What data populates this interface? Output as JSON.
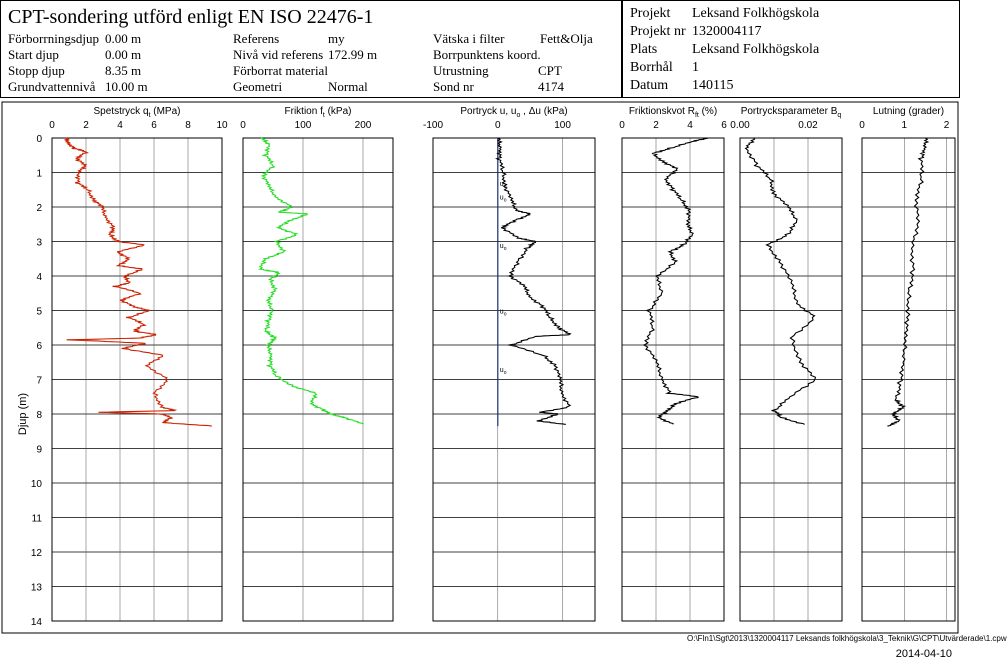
{
  "header": {
    "title": "CPT-sondering utförd enligt EN ISO 22476-1",
    "c1": [
      [
        "Förborrningsdjup",
        "0.00 m"
      ],
      [
        "Start djup",
        "0.00 m"
      ],
      [
        "Stopp djup",
        "8.35 m"
      ],
      [
        "Grundvattennivå",
        "10.00 m"
      ]
    ],
    "c2": [
      [
        "Referens",
        "my"
      ],
      [
        "Nivå vid referens",
        "172.99 m"
      ],
      [
        "Förborrat material",
        ""
      ],
      [
        "Geometri",
        "Normal"
      ]
    ],
    "c3": [
      [
        "Vätska i filter",
        "Fett&Olja"
      ],
      [
        "Borrpunktens koord.",
        ""
      ],
      [
        "Utrustning",
        "CPT"
      ],
      [
        "Sond nr",
        "4174"
      ]
    ],
    "c4": [
      [
        "Projekt",
        "Leksand Folkhögskola"
      ],
      [
        "Projekt nr",
        "1320004117"
      ],
      [
        "Plats",
        "Leksand Folkhögskola"
      ],
      [
        "Borrhål",
        "1"
      ],
      [
        "Datum",
        "140115"
      ]
    ]
  },
  "footer": {
    "path": "O:\\Fln1\\Sgt\\2013\\1320004117 Leksands folkhögskola\\3_Teknik\\G\\CPT\\Utvärderade\\1.cpw",
    "date": "2014-04-10"
  },
  "chart_data": {
    "type": "line",
    "ylabel": "Djup (m)",
    "y_ticks": [
      0,
      1,
      2,
      3,
      4,
      5,
      6,
      7,
      8,
      9,
      10,
      11,
      12,
      13,
      14
    ],
    "ylim": [
      0,
      14
    ],
    "panels": [
      {
        "name": "Spetstryck qt (MPa)",
        "title_main": "Spetstryck q",
        "title_sub": "t",
        "title_end": "(MPa)",
        "ticks": [
          "0",
          "2",
          "4",
          "6",
          "8",
          "10"
        ],
        "xlim": [
          0,
          10
        ],
        "color": "#cc2200",
        "points": [
          [
            0.8,
            0
          ],
          [
            1.0,
            0.15
          ],
          [
            1.3,
            0.3
          ],
          [
            2.0,
            0.4
          ],
          [
            1.5,
            0.6
          ],
          [
            1.9,
            0.8
          ],
          [
            1.6,
            1.0
          ],
          [
            1.5,
            1.3
          ],
          [
            2.1,
            1.5
          ],
          [
            2.5,
            1.8
          ],
          [
            2.9,
            2.0
          ],
          [
            3.2,
            2.3
          ],
          [
            3.6,
            2.6
          ],
          [
            3.4,
            2.8
          ],
          [
            3.9,
            3.0
          ],
          [
            5.4,
            3.1
          ],
          [
            3.9,
            3.3
          ],
          [
            4.5,
            3.5
          ],
          [
            3.9,
            3.7
          ],
          [
            5.4,
            3.8
          ],
          [
            4.2,
            4.0
          ],
          [
            4.6,
            4.2
          ],
          [
            3.7,
            4.3
          ],
          [
            5.2,
            4.5
          ],
          [
            4.1,
            4.7
          ],
          [
            4.8,
            4.9
          ],
          [
            5.8,
            5.0
          ],
          [
            4.5,
            5.2
          ],
          [
            5.4,
            5.4
          ],
          [
            4.9,
            5.6
          ],
          [
            6.1,
            5.7
          ],
          [
            5.2,
            5.8
          ],
          [
            1.0,
            5.85
          ],
          [
            5.5,
            5.95
          ],
          [
            4.2,
            6.1
          ],
          [
            6.5,
            6.3
          ],
          [
            5.6,
            6.6
          ],
          [
            6.8,
            7.0
          ],
          [
            6.0,
            7.4
          ],
          [
            6.5,
            7.8
          ],
          [
            7.2,
            7.9
          ],
          [
            2.8,
            7.95
          ],
          [
            6.4,
            8.0
          ],
          [
            7.0,
            8.1
          ],
          [
            6.6,
            8.25
          ],
          [
            9.4,
            8.35
          ]
        ]
      },
      {
        "name": "Friktion ft (kPa)",
        "title_main": "Friktion f",
        "title_sub": "t",
        "title_end": "(kPa)",
        "ticks": [
          "0",
          "100",
          "200"
        ],
        "xlim": [
          0,
          250
        ],
        "color": "#22dd22",
        "points": [
          [
            30,
            0
          ],
          [
            45,
            0.2
          ],
          [
            38,
            0.5
          ],
          [
            50,
            0.8
          ],
          [
            35,
            1.1
          ],
          [
            42,
            1.4
          ],
          [
            55,
            1.7
          ],
          [
            80,
            2.0
          ],
          [
            60,
            2.15
          ],
          [
            110,
            2.2
          ],
          [
            75,
            2.4
          ],
          [
            60,
            2.6
          ],
          [
            90,
            2.8
          ],
          [
            55,
            3.0
          ],
          [
            70,
            3.3
          ],
          [
            35,
            3.5
          ],
          [
            30,
            3.8
          ],
          [
            60,
            3.9
          ],
          [
            45,
            4.1
          ],
          [
            55,
            4.4
          ],
          [
            40,
            4.7
          ],
          [
            50,
            5.0
          ],
          [
            42,
            5.3
          ],
          [
            38,
            5.6
          ],
          [
            55,
            5.8
          ],
          [
            40,
            6.0
          ],
          [
            48,
            6.3
          ],
          [
            45,
            6.6
          ],
          [
            55,
            6.9
          ],
          [
            85,
            7.2
          ],
          [
            120,
            7.4
          ],
          [
            115,
            7.7
          ],
          [
            135,
            7.9
          ],
          [
            145,
            8.0
          ],
          [
            170,
            8.1
          ],
          [
            200,
            8.3
          ]
        ]
      },
      {
        "name": "Portryck u, uo, Δu (kPa)",
        "title_main": "Portryck u, u",
        "title_sub": "o",
        "title_end": ", Δu  (kPa)",
        "ticks": [
          "-100",
          "0",
          "100"
        ],
        "xlim": [
          -100,
          150
        ],
        "color": "#000000",
        "uo_color": "#1a2f6e",
        "uo_x": 0,
        "uo_labels": [
          1.3,
          1.7,
          3.1,
          5.0,
          6.7
        ],
        "points": [
          [
            0,
            0
          ],
          [
            5,
            0.3
          ],
          [
            2,
            0.6
          ],
          [
            8,
            1.0
          ],
          [
            12,
            1.4
          ],
          [
            20,
            1.8
          ],
          [
            30,
            2.1
          ],
          [
            50,
            2.2
          ],
          [
            25,
            2.4
          ],
          [
            8,
            2.6
          ],
          [
            30,
            2.9
          ],
          [
            60,
            3.0
          ],
          [
            45,
            3.2
          ],
          [
            30,
            3.6
          ],
          [
            20,
            4.0
          ],
          [
            40,
            4.3
          ],
          [
            50,
            4.6
          ],
          [
            70,
            4.9
          ],
          [
            80,
            5.2
          ],
          [
            95,
            5.5
          ],
          [
            110,
            5.7
          ],
          [
            60,
            5.75
          ],
          [
            20,
            6.0
          ],
          [
            70,
            6.3
          ],
          [
            90,
            6.6
          ],
          [
            95,
            7.0
          ],
          [
            100,
            7.4
          ],
          [
            110,
            7.8
          ],
          [
            65,
            7.95
          ],
          [
            95,
            8.0
          ],
          [
            60,
            8.2
          ],
          [
            105,
            8.3
          ]
        ]
      },
      {
        "name": "Friktionskvot Rft (%)",
        "title_main": "Friktionskvot R",
        "title_sub": "ft",
        "title_end": "(%)",
        "ticks": [
          "0",
          "2",
          "4",
          "6"
        ],
        "xlim": [
          0,
          6
        ],
        "color": "#000000",
        "points": [
          [
            5,
            0
          ],
          [
            4.2,
            0.1
          ],
          [
            2.8,
            0.3
          ],
          [
            1.8,
            0.45
          ],
          [
            2.5,
            0.7
          ],
          [
            3.2,
            0.9
          ],
          [
            2.6,
            1.2
          ],
          [
            3.0,
            1.5
          ],
          [
            3.5,
            1.8
          ],
          [
            4.0,
            2.1
          ],
          [
            3.8,
            2.5
          ],
          [
            4.2,
            2.8
          ],
          [
            3.6,
            3.1
          ],
          [
            2.8,
            3.3
          ],
          [
            3.2,
            3.6
          ],
          [
            2.0,
            4.0
          ],
          [
            2.4,
            4.5
          ],
          [
            1.6,
            5.0
          ],
          [
            1.8,
            5.5
          ],
          [
            1.4,
            6.0
          ],
          [
            2.0,
            6.5
          ],
          [
            2.4,
            7.0
          ],
          [
            2.8,
            7.4
          ],
          [
            4.5,
            7.5
          ],
          [
            3.2,
            7.7
          ],
          [
            2.6,
            7.9
          ],
          [
            2.2,
            8.1
          ],
          [
            3.0,
            8.3
          ]
        ]
      },
      {
        "name": "Portrycksparameter Bq",
        "title_main": "Portrycksparameter B",
        "title_sub": "q",
        "title_end": "",
        "ticks": [
          "0.00",
          "",
          "0.02"
        ],
        "xlim": [
          0,
          0.03
        ],
        "color": "#000000",
        "points": [
          [
            0.004,
            0
          ],
          [
            0.002,
            0.3
          ],
          [
            0.005,
            0.8
          ],
          [
            0.009,
            1.2
          ],
          [
            0.01,
            1.6
          ],
          [
            0.014,
            2.0
          ],
          [
            0.017,
            2.4
          ],
          [
            0.014,
            2.8
          ],
          [
            0.008,
            3.1
          ],
          [
            0.012,
            3.6
          ],
          [
            0.015,
            4.2
          ],
          [
            0.017,
            4.8
          ],
          [
            0.022,
            5.2
          ],
          [
            0.015,
            5.8
          ],
          [
            0.018,
            6.5
          ],
          [
            0.022,
            7.0
          ],
          [
            0.015,
            7.5
          ],
          [
            0.01,
            7.9
          ],
          [
            0.012,
            8.1
          ],
          [
            0.019,
            8.3
          ]
        ]
      },
      {
        "name": "Lutning (grader)",
        "title_main": "Lutning (grader)",
        "title_sub": "",
        "title_end": "",
        "ticks": [
          "0",
          "1",
          "2"
        ],
        "xlim": [
          0,
          2.2
        ],
        "color": "#000000",
        "points": [
          [
            1.5,
            0
          ],
          [
            1.5,
            0.3
          ],
          [
            1.4,
            0.6
          ],
          [
            1.4,
            1.2
          ],
          [
            1.3,
            1.8
          ],
          [
            1.3,
            2.5
          ],
          [
            1.2,
            3.2
          ],
          [
            1.2,
            3.9
          ],
          [
            1.1,
            4.5
          ],
          [
            1.1,
            5.2
          ],
          [
            1.0,
            5.8
          ],
          [
            1.0,
            6.5
          ],
          [
            0.9,
            7.1
          ],
          [
            0.8,
            7.6
          ],
          [
            1.0,
            7.8
          ],
          [
            0.7,
            8.0
          ],
          [
            0.9,
            8.2
          ],
          [
            0.6,
            8.35
          ]
        ]
      }
    ]
  }
}
